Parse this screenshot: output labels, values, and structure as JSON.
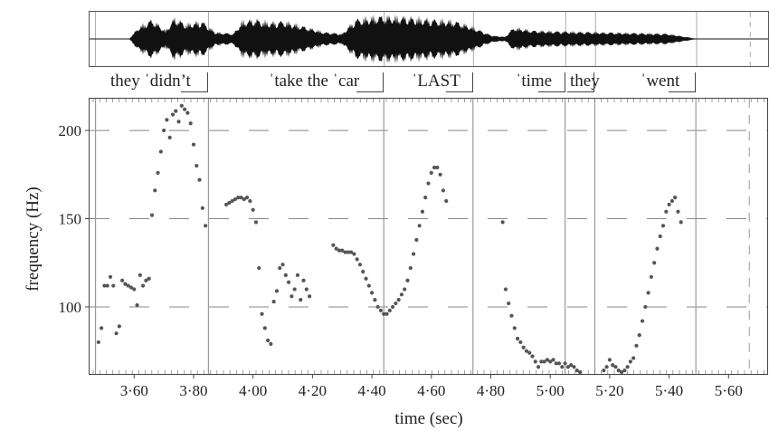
{
  "words": [
    {
      "text": "they ˈdidn’t",
      "x": 122
    },
    {
      "text": "ˈtake the ˈcar",
      "x": 297
    },
    {
      "text": "ˈLAST",
      "x": 455
    },
    {
      "text": "ˈtime",
      "x": 570
    },
    {
      "text": "they",
      "x": 630
    },
    {
      "text": "ˈwent",
      "x": 708
    }
  ],
  "chart_data": {
    "type": "scatter",
    "title": "",
    "xlabel": "time (sec)",
    "ylabel": "frequency (Hz)",
    "xlim": [
      3.45,
      5.73
    ],
    "ylim": [
      62,
      218
    ],
    "x_ticks": [
      3.6,
      3.8,
      4.0,
      4.2,
      4.4,
      4.6,
      4.8,
      5.0,
      5.2,
      5.4,
      5.6
    ],
    "x_tick_labels": [
      "3·60",
      "3·80",
      "4·00",
      "4·20",
      "4·40",
      "4·60",
      "4·80",
      "5·00",
      "5·20",
      "5·40",
      "5·60"
    ],
    "y_ticks": [
      100,
      150,
      200
    ],
    "y_tick_labels": [
      "100",
      "150",
      "200"
    ],
    "grid": "dashed horizontal at y ticks",
    "boundaries": [
      3.47,
      3.85,
      4.44,
      4.74,
      5.05,
      5.15,
      5.49
    ],
    "dashed_boundaries": [
      5.67
    ],
    "points": [
      [
        3.48,
        80
      ],
      [
        3.49,
        88
      ],
      [
        3.5,
        112
      ],
      [
        3.51,
        112
      ],
      [
        3.52,
        117
      ],
      [
        3.53,
        112
      ],
      [
        3.54,
        85
      ],
      [
        3.55,
        89
      ],
      [
        3.56,
        115
      ],
      [
        3.57,
        113
      ],
      [
        3.58,
        112
      ],
      [
        3.59,
        111
      ],
      [
        3.6,
        110
      ],
      [
        3.61,
        101
      ],
      [
        3.62,
        118
      ],
      [
        3.63,
        112
      ],
      [
        3.64,
        115
      ],
      [
        3.65,
        116
      ],
      [
        3.66,
        152
      ],
      [
        3.67,
        166
      ],
      [
        3.68,
        176
      ],
      [
        3.69,
        188
      ],
      [
        3.7,
        200
      ],
      [
        3.71,
        206
      ],
      [
        3.72,
        196
      ],
      [
        3.73,
        209
      ],
      [
        3.74,
        211
      ],
      [
        3.75,
        205
      ],
      [
        3.76,
        214
      ],
      [
        3.77,
        212
      ],
      [
        3.78,
        210
      ],
      [
        3.79,
        204
      ],
      [
        3.8,
        192
      ],
      [
        3.81,
        180
      ],
      [
        3.82,
        172
      ],
      [
        3.83,
        156
      ],
      [
        3.84,
        146
      ],
      [
        3.91,
        158
      ],
      [
        3.92,
        159
      ],
      [
        3.93,
        160
      ],
      [
        3.94,
        161
      ],
      [
        3.95,
        162
      ],
      [
        3.96,
        162
      ],
      [
        3.97,
        161
      ],
      [
        3.98,
        162
      ],
      [
        3.99,
        160
      ],
      [
        4.0,
        155
      ],
      [
        4.01,
        148
      ],
      [
        4.02,
        122
      ],
      [
        4.03,
        96
      ],
      [
        4.04,
        88
      ],
      [
        4.05,
        81
      ],
      [
        4.06,
        79
      ],
      [
        4.07,
        103
      ],
      [
        4.08,
        109
      ],
      [
        4.09,
        122
      ],
      [
        4.1,
        124
      ],
      [
        4.11,
        118
      ],
      [
        4.12,
        114
      ],
      [
        4.13,
        106
      ],
      [
        4.14,
        110
      ],
      [
        4.15,
        118
      ],
      [
        4.16,
        104
      ],
      [
        4.17,
        115
      ],
      [
        4.18,
        110
      ],
      [
        4.19,
        106
      ],
      [
        4.27,
        135
      ],
      [
        4.28,
        133
      ],
      [
        4.29,
        132
      ],
      [
        4.3,
        132
      ],
      [
        4.31,
        131
      ],
      [
        4.32,
        131
      ],
      [
        4.33,
        131
      ],
      [
        4.34,
        130
      ],
      [
        4.35,
        127
      ],
      [
        4.36,
        124
      ],
      [
        4.37,
        120
      ],
      [
        4.38,
        116
      ],
      [
        4.39,
        112
      ],
      [
        4.4,
        108
      ],
      [
        4.41,
        104
      ],
      [
        4.42,
        100
      ],
      [
        4.43,
        98
      ],
      [
        4.44,
        96
      ],
      [
        4.45,
        96
      ],
      [
        4.46,
        98
      ],
      [
        4.47,
        100
      ],
      [
        4.48,
        102
      ],
      [
        4.49,
        104
      ],
      [
        4.5,
        107
      ],
      [
        4.51,
        110
      ],
      [
        4.52,
        115
      ],
      [
        4.53,
        122
      ],
      [
        4.54,
        130
      ],
      [
        4.55,
        138
      ],
      [
        4.56,
        146
      ],
      [
        4.57,
        154
      ],
      [
        4.58,
        162
      ],
      [
        4.59,
        170
      ],
      [
        4.6,
        176
      ],
      [
        4.61,
        179
      ],
      [
        4.62,
        179
      ],
      [
        4.63,
        175
      ],
      [
        4.64,
        166
      ],
      [
        4.65,
        160
      ],
      [
        4.84,
        148
      ],
      [
        4.85,
        110
      ],
      [
        4.86,
        102
      ],
      [
        4.87,
        95
      ],
      [
        4.88,
        88
      ],
      [
        4.89,
        82
      ],
      [
        4.9,
        80
      ],
      [
        4.91,
        77
      ],
      [
        4.92,
        75
      ],
      [
        4.93,
        74
      ],
      [
        4.94,
        72
      ],
      [
        4.95,
        69
      ],
      [
        4.96,
        66
      ],
      [
        4.97,
        69
      ],
      [
        4.98,
        69
      ],
      [
        4.99,
        70
      ],
      [
        5.0,
        69
      ],
      [
        5.01,
        70
      ],
      [
        5.02,
        68
      ],
      [
        5.03,
        68
      ],
      [
        5.04,
        66
      ],
      [
        5.05,
        68
      ],
      [
        5.06,
        66
      ],
      [
        5.07,
        67
      ],
      [
        5.08,
        66
      ],
      [
        5.09,
        64
      ],
      [
        5.1,
        63
      ],
      [
        5.18,
        64
      ],
      [
        5.19,
        66
      ],
      [
        5.2,
        70
      ],
      [
        5.21,
        67
      ],
      [
        5.22,
        66
      ],
      [
        5.23,
        64
      ],
      [
        5.24,
        63
      ],
      [
        5.25,
        64
      ],
      [
        5.26,
        66
      ],
      [
        5.27,
        69
      ],
      [
        5.28,
        71
      ],
      [
        5.29,
        78
      ],
      [
        5.3,
        84
      ],
      [
        5.31,
        92
      ],
      [
        5.32,
        100
      ],
      [
        5.33,
        108
      ],
      [
        5.34,
        117
      ],
      [
        5.35,
        125
      ],
      [
        5.36,
        133
      ],
      [
        5.37,
        140
      ],
      [
        5.38,
        146
      ],
      [
        5.39,
        154
      ],
      [
        5.4,
        158
      ],
      [
        5.41,
        160
      ],
      [
        5.42,
        162
      ],
      [
        5.43,
        154
      ],
      [
        5.44,
        148
      ]
    ]
  }
}
